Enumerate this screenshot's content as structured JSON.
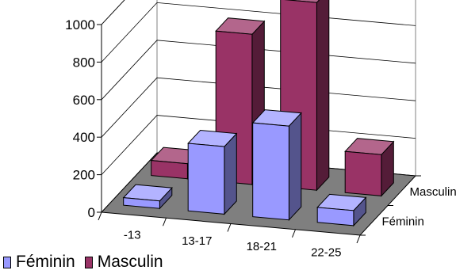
{
  "chart_data": {
    "type": "bar",
    "categories": [
      "-13",
      "13-17",
      "18-21",
      "22-25"
    ],
    "series": [
      {
        "name": "Féminin",
        "values": [
          40,
          360,
          500,
          80
        ]
      },
      {
        "name": "Masculin",
        "values": [
          80,
          800,
          1000,
          220
        ]
      }
    ],
    "ylim": [
      0,
      1000
    ],
    "yticks": [
      "0",
      "200",
      "400",
      "600",
      "800",
      "1000"
    ],
    "depth_labels": [
      "Masculin",
      "Féminin"
    ],
    "grid": true,
    "legend_position": "bottom-left",
    "colors": {
      "feminin": "#9999ff",
      "masculin": "#993366",
      "floor": "#7f7f7f",
      "gridline": "#000000"
    },
    "title": "",
    "xlabel": "",
    "ylabel": ""
  },
  "legend": {
    "feminin_label": "Féminin",
    "masculin_label": "Masculin"
  }
}
